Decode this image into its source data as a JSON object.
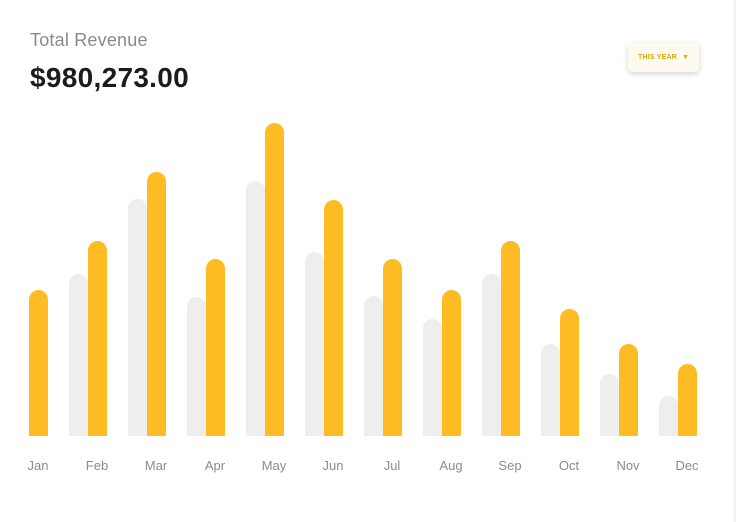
{
  "card": {
    "title": "Total Revenue",
    "total": "$980,273.00"
  },
  "period_select": {
    "label": "This Year",
    "icon": "chevron-down-icon"
  },
  "colors": {
    "current": "#FDBC23",
    "previous": "#EEEEEE",
    "label": "#8C8C8C"
  },
  "chart_data": {
    "type": "bar",
    "categories": [
      "Jan",
      "Feb",
      "Mar",
      "Apr",
      "May",
      "Jun",
      "Jul",
      "Aug",
      "Sep",
      "Oct",
      "Nov",
      "Dec"
    ],
    "series": [
      {
        "values": [
          0,
          162,
          237,
          139,
          255,
          184,
          140,
          117,
          162,
          92,
          62,
          40
        ]
      },
      {
        "values": [
          146,
          195,
          264,
          177,
          313,
          236,
          177,
          146,
          195,
          127,
          92,
          72
        ]
      }
    ],
    "ylim": [
      0,
      320
    ],
    "grid": false,
    "legend": "none"
  }
}
